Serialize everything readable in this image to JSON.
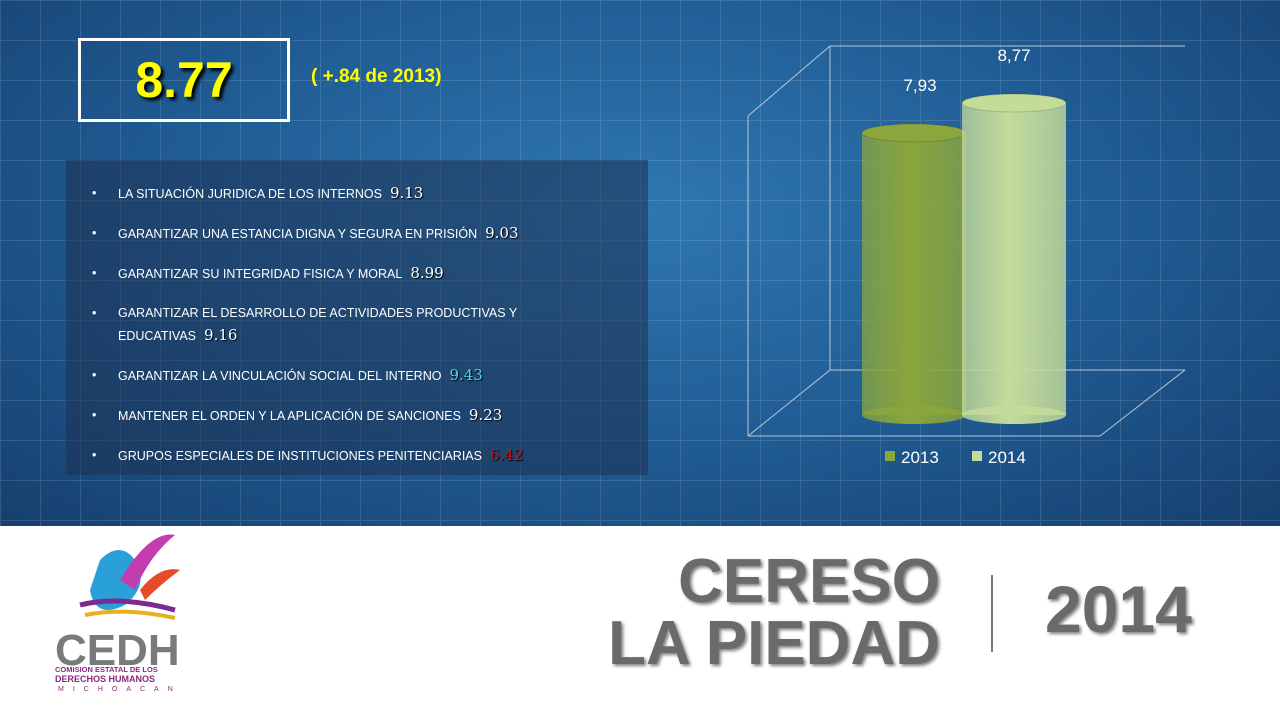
{
  "header": {
    "score": "8.77",
    "change": "( +.84 de 2013)"
  },
  "items": [
    {
      "text": "LA  SITUACIÓN JURIDICA DE LOS INTERNOS",
      "score": 9.13,
      "color": "#ffffff"
    },
    {
      "text": "GARANTIZAR UNA ESTANCIA DIGNA Y SEGURA EN PRISIÓN",
      "score": 9.03,
      "color": "#ffffff"
    },
    {
      "text": "GARANTIZAR SU INTEGRIDAD  FISICA Y MORAL",
      "score": 8.99,
      "color": "#ffffff"
    },
    {
      "text": "GARANTIZAR EL DESARROLLO DE  ACTIVIDADES PRODUCTIVAS Y EDUCATIVAS",
      "score": 9.16,
      "color": "#ffffff"
    },
    {
      "text": "GARANTIZAR LA VINCULACIÓN SOCIAL DEL INTERNO",
      "score": 9.43,
      "color": "#4fd8e8"
    },
    {
      "text": "MANTENER EL ORDEN Y LA APLICACIÓN DE SANCIONES",
      "score": 9.23,
      "color": "#ffffff"
    },
    {
      "text": "GRUPOS ESPECIALES DE INSTITUCIONES PENITENCIARIAS",
      "score": 6.42,
      "color": "#c0161c"
    }
  ],
  "chart_data": {
    "type": "bar",
    "categories": [
      null
    ],
    "series": [
      {
        "name": "2013",
        "color": "#8aa63c",
        "values": [
          7.93
        ],
        "value_labels": [
          "7,93"
        ]
      },
      {
        "name": "2014",
        "color": "#c4dc9a",
        "values": [
          8.77
        ],
        "value_labels": [
          "8,77"
        ]
      }
    ]
  },
  "footer": {
    "line1": "CERESO",
    "line2": "LA PIEDAD",
    "year": "2014"
  },
  "logo": {
    "acronym": "CEDH",
    "line1": "COMISION ESTATAL DE LOS",
    "line2": "DERECHOS HUMANOS",
    "line3": "MICHOACAN"
  }
}
